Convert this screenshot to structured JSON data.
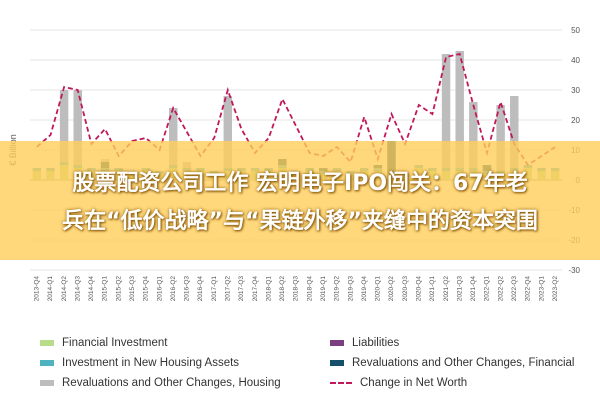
{
  "overlay": {
    "line1": "股票配资公司工作 宏明电子IPO闯关：67年老",
    "line2": "兵在“低价战略”与“果链外移”夹缝中的资本突围"
  },
  "chart_data": {
    "type": "bar",
    "ylabel": "€ Billion",
    "ylim": [
      -30,
      50
    ],
    "yticks": [
      -30,
      -20,
      -10,
      0,
      10,
      20,
      30,
      40,
      50
    ],
    "grid": true,
    "legend_position": "bottom",
    "categories": [
      "2013-Q4",
      "2014-Q1",
      "2014-Q2",
      "2014-Q3",
      "2014-Q4",
      "2015-Q1",
      "2015-Q2",
      "2015-Q3",
      "2015-Q4",
      "2016-Q1",
      "2016-Q2",
      "2016-Q3",
      "2016-Q4",
      "2017-Q1",
      "2017-Q2",
      "2017-Q3",
      "2017-Q4",
      "2018-Q1",
      "2018-Q2",
      "2018-Q3",
      "2018-Q4",
      "2019-Q1",
      "2019-Q2",
      "2019-Q3",
      "2019-Q4",
      "2020-Q1",
      "2020-Q2",
      "2020-Q3",
      "2020-Q4",
      "2021-Q1",
      "2021-Q2",
      "2021-Q3",
      "2021-Q4",
      "2022-Q1",
      "2022-Q2",
      "2022-Q3",
      "2022-Q4",
      "2023-Q1",
      "2023-Q2"
    ],
    "series": [
      {
        "name": "Financial Investment",
        "type": "bar",
        "color": "#b9dc8b",
        "values": [
          3,
          3,
          5,
          4,
          3,
          3,
          3,
          2,
          3,
          2,
          4,
          3,
          3,
          2,
          3,
          3,
          3,
          3,
          4,
          2,
          3,
          2,
          3,
          2,
          3,
          3,
          -3,
          1,
          4,
          3,
          3,
          3,
          3,
          2,
          2,
          3,
          4,
          3,
          3
        ]
      },
      {
        "name": "Liabilities",
        "type": "bar",
        "color": "#7b3f7f",
        "values": [
          0,
          0,
          0,
          0,
          0,
          0,
          0,
          0,
          0,
          0,
          0,
          0,
          0,
          0,
          0,
          0,
          0,
          0,
          0,
          0,
          0,
          0,
          0,
          0,
          0,
          0,
          0,
          0,
          0,
          0,
          0,
          0,
          0,
          0,
          0,
          0,
          0,
          0,
          0
        ]
      },
      {
        "name": "Investment in New Housing Assets",
        "type": "bar",
        "color": "#4fb3bf",
        "values": [
          1,
          1,
          1,
          1,
          1,
          1,
          1,
          1,
          1,
          1,
          1,
          1,
          1,
          1,
          1,
          1,
          1,
          1,
          1,
          1,
          1,
          1,
          1,
          1,
          1,
          1,
          1,
          1,
          1,
          1,
          1,
          1,
          1,
          1,
          1,
          1,
          1,
          1,
          1
        ]
      },
      {
        "name": "Revaluations and Other Changes, Financial",
        "type": "bar",
        "color": "#15506b",
        "values": [
          0,
          0,
          0,
          0,
          0,
          2,
          0,
          0,
          0,
          0,
          0,
          0,
          0,
          0,
          0,
          0,
          0,
          0,
          2,
          0,
          0,
          1,
          0,
          0,
          0,
          1,
          12,
          0,
          0,
          0,
          0,
          0,
          0,
          2,
          0,
          0,
          0,
          0,
          0
        ]
      },
      {
        "name": "Revaluations and Other Changes, Housing",
        "type": "bar",
        "color": "#bdbdbd",
        "values": [
          0,
          0,
          24,
          25,
          0,
          1,
          0,
          0,
          0,
          0,
          19,
          2,
          0,
          0,
          24,
          0,
          0,
          0,
          0,
          0,
          0,
          0,
          0,
          0,
          0,
          0,
          0,
          0,
          0,
          0,
          38,
          39,
          22,
          0,
          22,
          24,
          0,
          0,
          0
        ]
      },
      {
        "name": "Change in Net Worth",
        "type": "line",
        "color": "#c2185b",
        "values": [
          11,
          15,
          31,
          30,
          12,
          17,
          8,
          13,
          14,
          10,
          24,
          16,
          8,
          14,
          30,
          17,
          9,
          14,
          27,
          18,
          9,
          8,
          11,
          6,
          21,
          7,
          22,
          12,
          25,
          22,
          41,
          42,
          25,
          9,
          26,
          12,
          5,
          8,
          11
        ]
      }
    ]
  },
  "legend": {
    "items": [
      {
        "label": "Financial Investment",
        "color": "#b9dc8b",
        "kind": "bar"
      },
      {
        "label": "Liabilities",
        "color": "#7b3f7f",
        "kind": "bar"
      },
      {
        "label": "Investment in New Housing Assets",
        "color": "#4fb3bf",
        "kind": "bar"
      },
      {
        "label": "Revaluations and Other Changes, Financial",
        "color": "#15506b",
        "kind": "bar"
      },
      {
        "label": "Revaluations and Other Changes, Housing",
        "color": "#bdbdbd",
        "kind": "bar"
      },
      {
        "label": "Change in Net Worth",
        "color": "#c2185b",
        "kind": "line"
      }
    ]
  }
}
